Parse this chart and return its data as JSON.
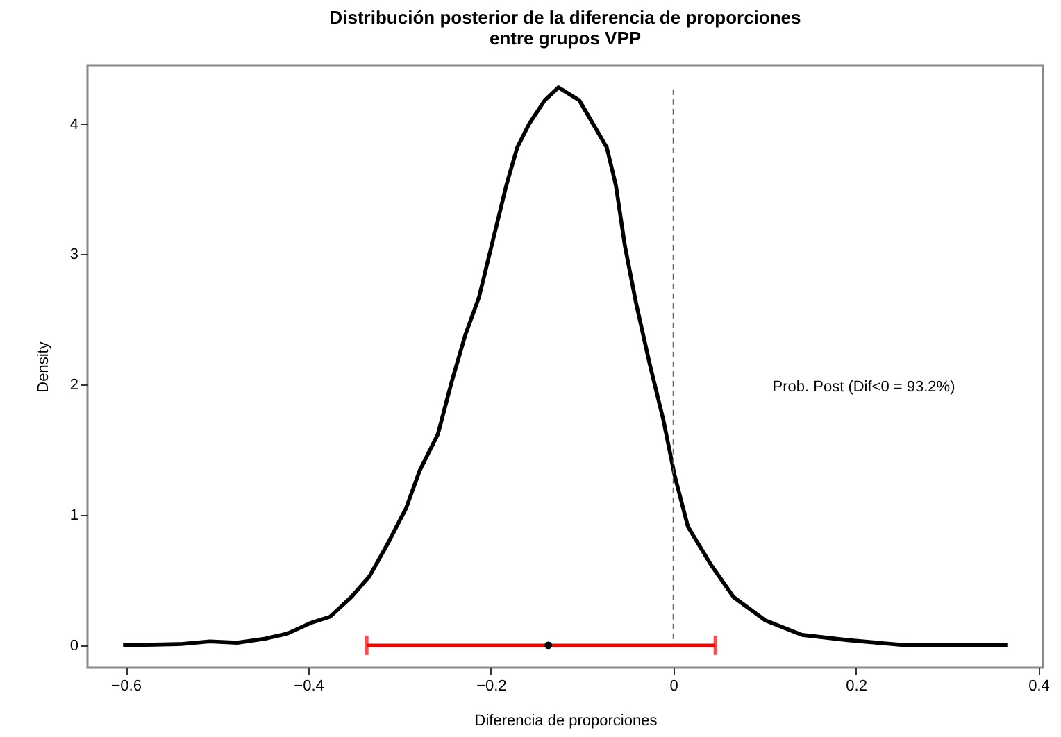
{
  "chart_data": {
    "type": "line",
    "title": "Distribución posterior de la diferencia de proporciones\nentre grupos VPP",
    "xlabel": "Diferencia de proporciones",
    "ylabel": "Density",
    "xlim": [
      -0.642,
      0.405
    ],
    "ylim": [
      -0.171,
      4.45
    ],
    "xticks": [
      -0.6,
      -0.4,
      -0.2,
      0.0,
      0.2,
      0.4
    ],
    "yticks": [
      0,
      1,
      2,
      3,
      4
    ],
    "grid": false,
    "series": [
      {
        "color": "#000000",
        "x": [
          -0.603,
          -0.539,
          -0.508,
          -0.478,
          -0.448,
          -0.423,
          -0.398,
          -0.376,
          -0.353,
          -0.333,
          -0.313,
          -0.293,
          -0.278,
          -0.258,
          -0.243,
          -0.228,
          -0.213,
          -0.198,
          -0.183,
          -0.171,
          -0.158,
          -0.141,
          -0.126,
          -0.103,
          -0.088,
          -0.073,
          -0.063,
          -0.053,
          -0.041,
          -0.026,
          -0.011,
          0.0015,
          0.016,
          0.041,
          0.066,
          0.101,
          0.141,
          0.191,
          0.256,
          0.366
        ],
        "values": [
          0,
          0.01,
          0.03,
          0.02,
          0.05,
          0.09,
          0.17,
          0.22,
          0.37,
          0.53,
          0.78,
          1.05,
          1.34,
          1.62,
          2.02,
          2.38,
          2.67,
          3.1,
          3.53,
          3.82,
          4.0,
          4.18,
          4.28,
          4.18,
          4.0,
          3.82,
          3.53,
          3.06,
          2.63,
          2.16,
          1.73,
          1.3,
          0.91,
          0.62,
          0.37,
          0.19,
          0.08,
          0.04,
          0.0,
          0.0
        ]
      },
      {
        "type": "scatter",
        "color": "#000000",
        "x": [
          -0.137
        ],
        "values": [
          0
        ],
        "xerrors": [
          [
            -0.336,
            0.046
          ]
        ],
        "marker": "circle"
      }
    ],
    "ref_lines": [
      {
        "axis": "x",
        "value": 0.0,
        "color": "#666666",
        "line_style": "dashed"
      }
    ],
    "annotations": [
      "Prob. Post (Dif<0 = 93.2%)"
    ]
  }
}
